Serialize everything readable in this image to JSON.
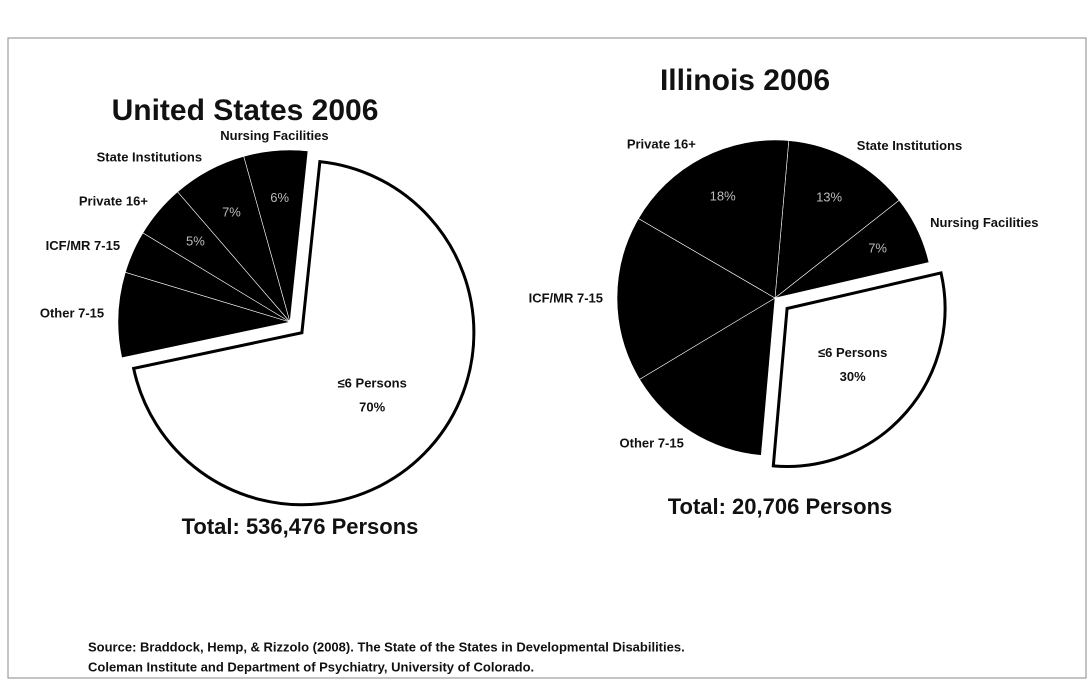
{
  "chart_data": [
    {
      "type": "pie",
      "title": "United States 2006",
      "categories": [
        "≤6 Persons",
        "Other 7-15",
        "ICF/MR 7-15",
        "Private 16+",
        "State Institutions",
        "Nursing Facilities"
      ],
      "values": [
        70,
        8,
        4,
        5,
        7,
        6
      ],
      "value_labels": [
        "70%",
        null,
        null,
        "5%",
        "7%",
        "6%"
      ],
      "colors": [
        "#ffffff",
        "#000000",
        "#000000",
        "#000000",
        "#000000",
        "#000000"
      ],
      "annotation": "Total: 536,476 Persons"
    },
    {
      "type": "pie",
      "title": "Illinois 2006",
      "categories": [
        "State Institutions",
        "Nursing Facilities",
        "≤6 Persons",
        "Other 7-15",
        "ICF/MR 7-15",
        "Private 16+"
      ],
      "values": [
        13,
        7,
        30,
        15,
        17,
        18
      ],
      "value_labels": [
        "13%",
        "7%",
        "30%",
        null,
        null,
        "18%"
      ],
      "colors": [
        "#000000",
        "#000000",
        "#ffffff",
        "#000000",
        "#000000",
        "#000000"
      ],
      "annotation": "Total: 20,706 Persons"
    }
  ],
  "source": [
    "Source: Braddock, Hemp, & Rizzolo (2008). The State of the States in Developmental Disabilities.",
    "Coleman Institute and Department of Psychiatry, University of Colorado."
  ]
}
